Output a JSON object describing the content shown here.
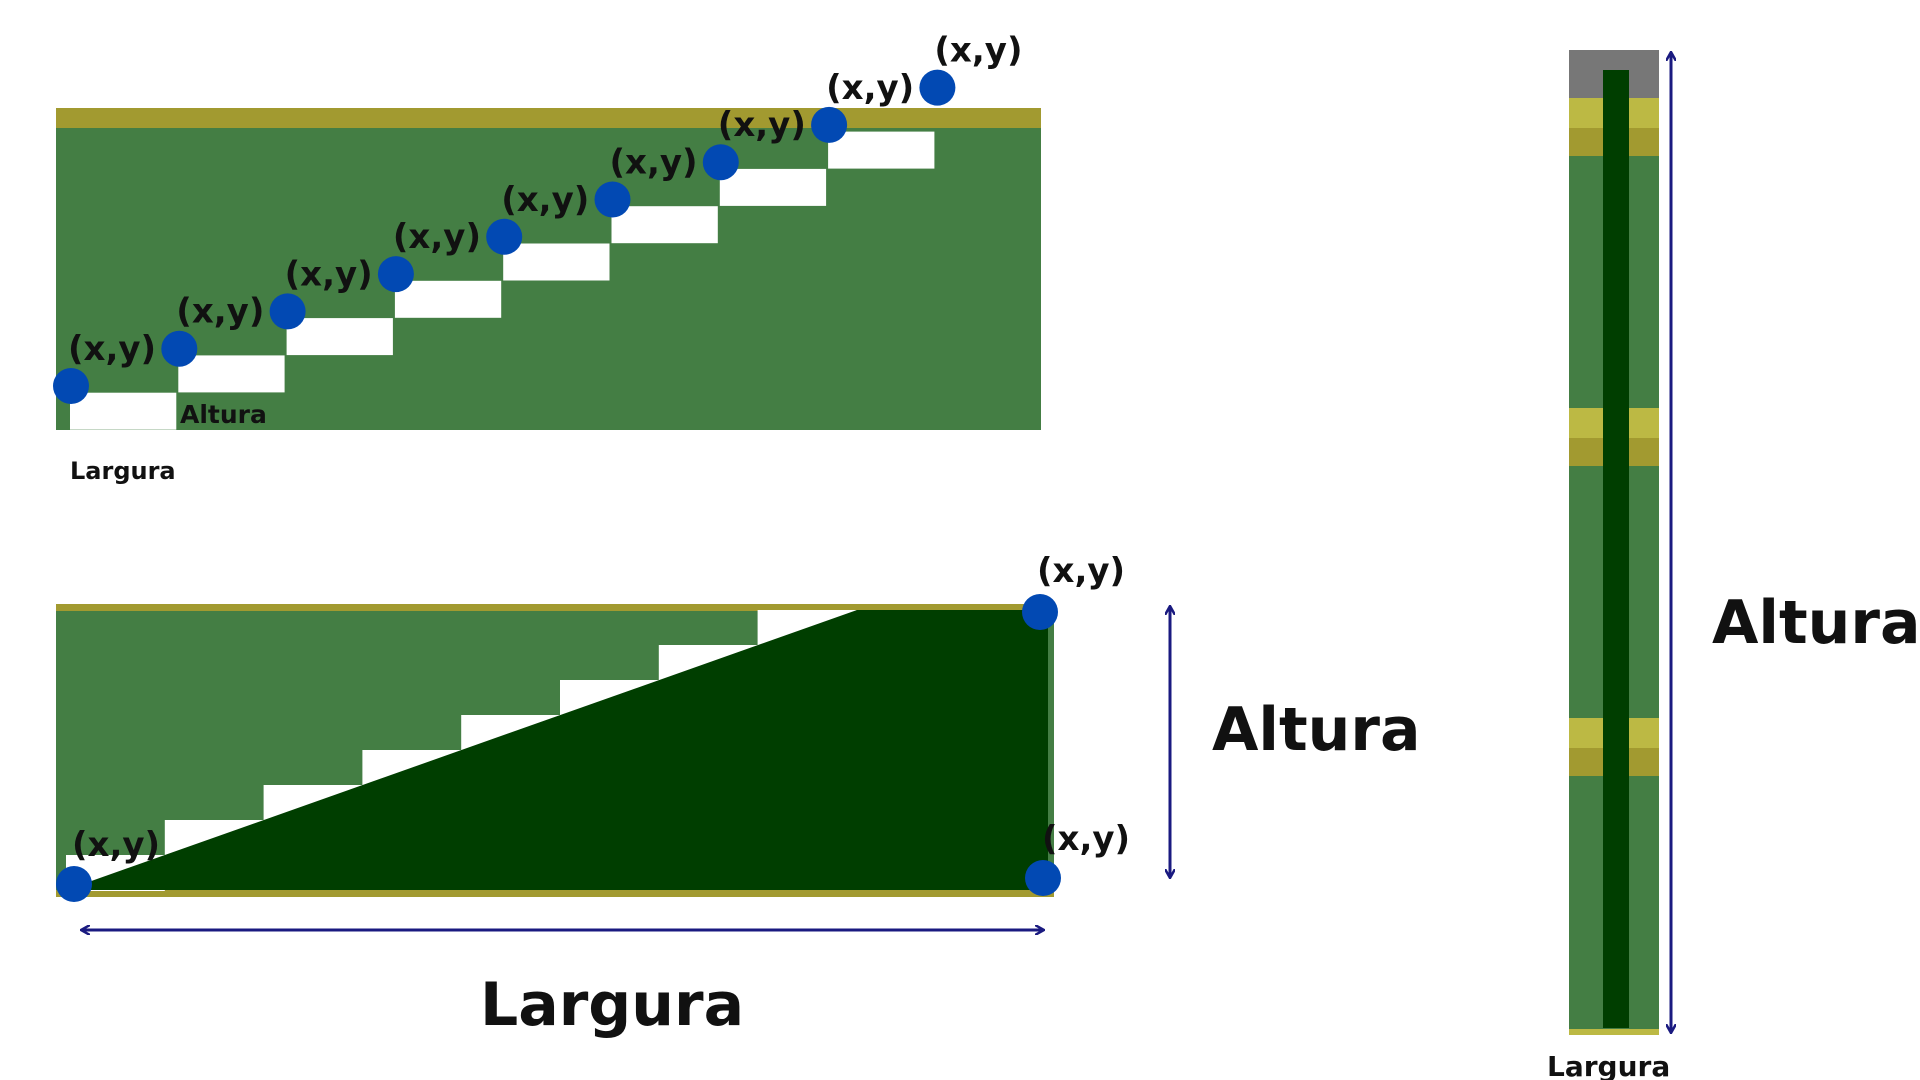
{
  "colors": {
    "grass": "#447e44",
    "dark_grass": "#003e00",
    "olive_band": "#a29a30",
    "light_olive": "#bcb944",
    "step": "#ffffff",
    "gray_cap": "#777777",
    "point": "#0249b3",
    "arrow": "#1a1a80",
    "text": "#111111"
  },
  "panel_stairs": {
    "step_count": 9,
    "point_label": "(x,y)",
    "altura_label": "Altura",
    "largura_label": "Largura"
  },
  "panel_ramp": {
    "step_count": 8,
    "point_label": "(x,y)",
    "altura_label": "Altura",
    "largura_label": "Largura"
  },
  "panel_pole": {
    "altura_label": "Altura",
    "largura_label": "Largura"
  }
}
